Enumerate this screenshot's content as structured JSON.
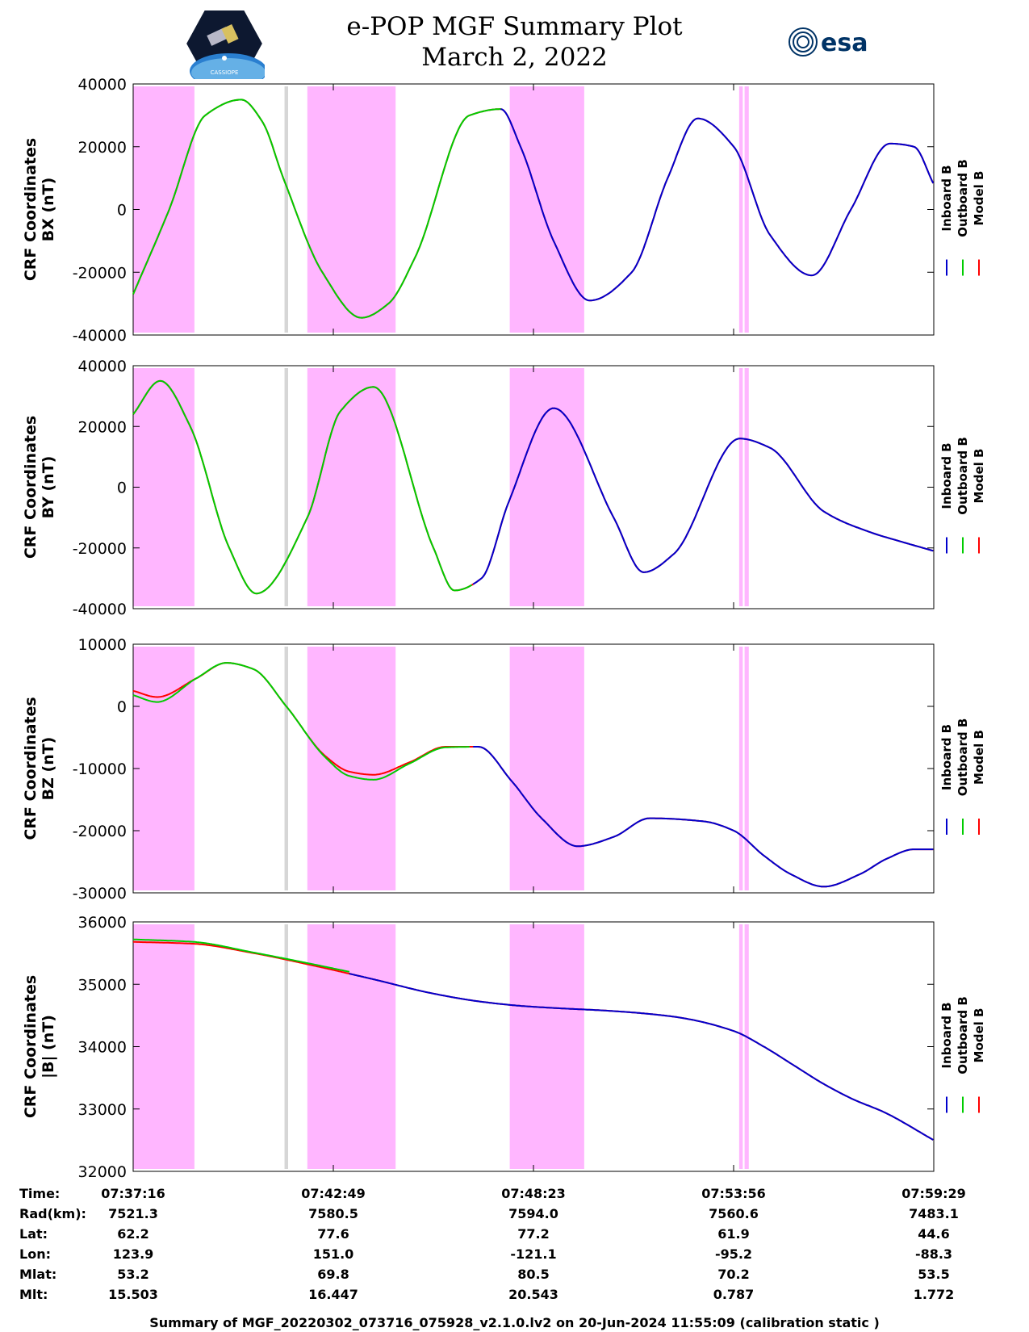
{
  "header": {
    "title_line1": "e-POP MGF Summary Plot",
    "title_line2": "March 2, 2022",
    "left_logo_caption": "CASSIOPE",
    "right_logo_text": "esa"
  },
  "colors": {
    "inboard": "#0000cc",
    "outboard": "#00cc00",
    "model": "#ff0000",
    "magenta_band": "#ffb6ff",
    "grey_band": "#d6d6d6"
  },
  "chart_data": [
    {
      "type": "line",
      "ylabel_line1": "CRF Coordinates",
      "ylabel_line2": "BX (nT)",
      "ylim": [
        -40000,
        40000
      ],
      "yticks": [
        40000,
        20000,
        0,
        -20000,
        -40000
      ],
      "legend": [
        "Inboard B",
        "Outboard B",
        "Model B"
      ],
      "xlim_seconds": [
        0,
        1333
      ],
      "inboard_from_seconds": 612,
      "series": {
        "model": {
          "x": [
            0,
            60,
            120,
            180,
            215,
            250,
            315,
            380,
            425,
            470,
            560,
            612,
            645,
            700,
            760,
            830,
            890,
            940,
            1000,
            1060,
            1130,
            1195,
            1260,
            1300,
            1333
          ],
          "y": [
            -27000,
            0,
            30000,
            35000,
            28000,
            10000,
            -20000,
            -34500,
            -30000,
            -15000,
            30000,
            32000,
            20000,
            -10000,
            -29000,
            -20000,
            10000,
            29000,
            20000,
            -8000,
            -21000,
            0,
            21000,
            20000,
            8000
          ]
        }
      }
    },
    {
      "type": "line",
      "ylabel_line1": "CRF Coordinates",
      "ylabel_line2": "BY (nT)",
      "ylim": [
        -40000,
        40000
      ],
      "yticks": [
        40000,
        20000,
        0,
        -20000,
        -40000
      ],
      "legend": [
        "Inboard B",
        "Outboard B",
        "Model B"
      ],
      "xlim_seconds": [
        0,
        1333
      ],
      "inboard_from_seconds": 565,
      "series": {
        "model": {
          "x": [
            0,
            45,
            95,
            160,
            205,
            290,
            345,
            400,
            500,
            535,
            580,
            625,
            700,
            800,
            850,
            900,
            1010,
            1060,
            1150,
            1230,
            1280,
            1333
          ],
          "y": [
            24000,
            35000,
            20000,
            -20000,
            -35000,
            -10000,
            25000,
            33000,
            -20000,
            -34000,
            -30000,
            -5000,
            26000,
            -10000,
            -28000,
            -22000,
            16000,
            13000,
            -8000,
            -15000,
            -18000,
            -21000
          ]
        }
      }
    },
    {
      "type": "line",
      "ylabel_line1": "CRF Coordinates",
      "ylabel_line2": "BZ (nT)",
      "ylim": [
        -30000,
        10000
      ],
      "yticks": [
        10000,
        0,
        -10000,
        -20000,
        -30000
      ],
      "legend": [
        "Inboard B",
        "Outboard B",
        "Model B"
      ],
      "xlim_seconds": [
        0,
        1333
      ],
      "inboard_from_seconds": 565,
      "series": {
        "model": {
          "x": [
            0,
            40,
            105,
            155,
            200,
            255,
            320,
            360,
            400,
            460,
            520,
            575,
            630,
            680,
            740,
            800,
            860,
            950,
            1000,
            1050,
            1095,
            1150,
            1210,
            1255,
            1300,
            1333
          ],
          "y": [
            2500,
            1500,
            4500,
            7000,
            6000,
            0,
            -8000,
            -10500,
            -11000,
            -9000,
            -6500,
            -6500,
            -12000,
            -18000,
            -22500,
            -21000,
            -18000,
            -18500,
            -20000,
            -24000,
            -27000,
            -29000,
            -27000,
            -24500,
            -23000,
            -23000
          ]
        },
        "outboard": {
          "x": [
            0,
            40,
            105,
            155,
            200,
            255,
            320,
            360,
            400,
            460,
            520,
            560
          ],
          "y": [
            1800,
            700,
            4500,
            7000,
            6000,
            0,
            -8200,
            -11200,
            -11800,
            -9200,
            -6600,
            -6500
          ]
        }
      }
    },
    {
      "type": "line",
      "ylabel_line1": "CRF Coordinates",
      "ylabel_line2": "|B| (nT)",
      "ylim": [
        32000,
        36000
      ],
      "yticks": [
        36000,
        35000,
        34000,
        33000,
        32000
      ],
      "legend": [
        "Inboard B",
        "Outboard B",
        "Model B"
      ],
      "xlim_seconds": [
        0,
        1333
      ],
      "inboard_from_seconds": 360,
      "series": {
        "model": {
          "x": [
            0,
            100,
            200,
            300,
            400,
            500,
            580,
            650,
            700,
            800,
            900,
            1000,
            1050,
            1100,
            1150,
            1200,
            1250,
            1333
          ],
          "y": [
            35680,
            35650,
            35500,
            35300,
            35080,
            34850,
            34720,
            34650,
            34620,
            34570,
            34480,
            34250,
            34000,
            33700,
            33400,
            33150,
            32950,
            32500
          ]
        },
        "outboard": {
          "x": [
            0,
            100,
            200,
            300,
            360
          ],
          "y": [
            35720,
            35680,
            35510,
            35320,
            35200
          ]
        }
      }
    }
  ],
  "shading": {
    "magenta_bands_seconds": [
      [
        0,
        102
      ],
      [
        290,
        437
      ],
      [
        627,
        751
      ],
      [
        1009,
        1015
      ],
      [
        1018,
        1025
      ]
    ],
    "grey_bands_seconds": [
      [
        252,
        258
      ]
    ]
  },
  "ephemeris": {
    "labels": [
      "Time:",
      "Rad(km):",
      "Lat:",
      "Lon:",
      "Mlat:",
      "Mlt:"
    ],
    "columns": [
      {
        "values": [
          "07:37:16",
          "7521.3",
          "62.2",
          "123.9",
          "53.2",
          "15.503"
        ]
      },
      {
        "values": [
          "07:42:49",
          "7580.5",
          "77.6",
          "151.0",
          "69.8",
          "16.447"
        ]
      },
      {
        "values": [
          "07:48:23",
          "7594.0",
          "77.2",
          "-121.1",
          "80.5",
          "20.543"
        ]
      },
      {
        "values": [
          "07:53:56",
          "7560.6",
          "61.9",
          "-95.2",
          "70.2",
          "0.787"
        ]
      },
      {
        "values": [
          "07:59:29",
          "7483.1",
          "44.6",
          "-88.3",
          "53.5",
          "1.772"
        ]
      }
    ]
  },
  "footer": "Summary of MGF_20220302_073716_075928_v2.1.0.lv2 on 20-Jun-2024 11:55:09 (calibration static )"
}
